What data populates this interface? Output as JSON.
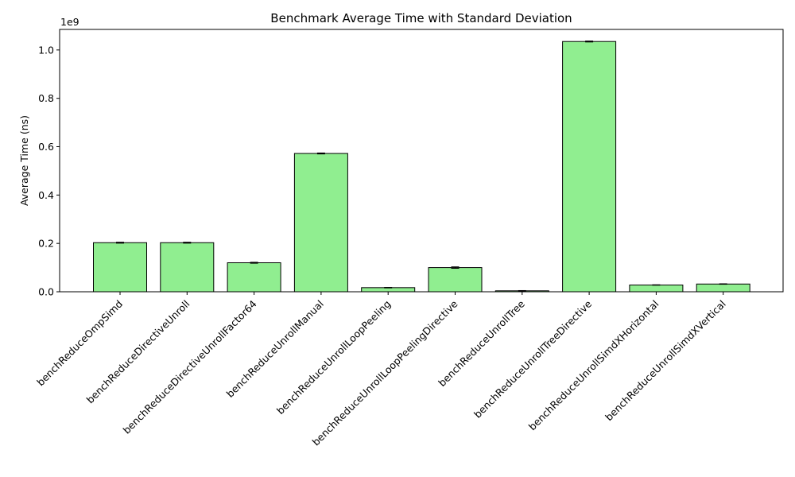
{
  "chart_data": {
    "type": "bar",
    "title": "Benchmark Average Time with Standard Deviation",
    "xlabel": "",
    "ylabel": "Average Time (ns)",
    "y_offset_text": "1e9",
    "ylim": [
      0,
      1.085
    ],
    "y_ticks": [
      0.0,
      0.2,
      0.4,
      0.6,
      0.8,
      1.0
    ],
    "y_tick_labels": [
      "0.0",
      "0.2",
      "0.4",
      "0.6",
      "0.8",
      "1.0"
    ],
    "grid": false,
    "bar_color": "#90ee90",
    "edge_color": "#000000",
    "categories": [
      "benchReduceOmpSimd",
      "benchReduceDirectiveUnroll",
      "benchReduceDirectiveUnrollFactor64",
      "benchReduceUnrollManual",
      "benchReduceUnrollLoopPeeling",
      "benchReduceUnrollLoopPeelingDirective",
      "benchReduceUnrollTree",
      "benchReduceUnrollTreeDirective",
      "benchReduceUnrollSimdXHorizontal",
      "benchReduceUnrollSimdXVertical"
    ],
    "values": [
      0.203,
      0.203,
      0.12,
      0.572,
      0.017,
      0.1,
      0.004,
      1.035,
      0.028,
      0.032
    ],
    "errors": [
      0.002,
      0.002,
      0.002,
      0.002,
      0.001,
      0.003,
      0.001,
      0.002,
      0.001,
      0.001
    ]
  }
}
